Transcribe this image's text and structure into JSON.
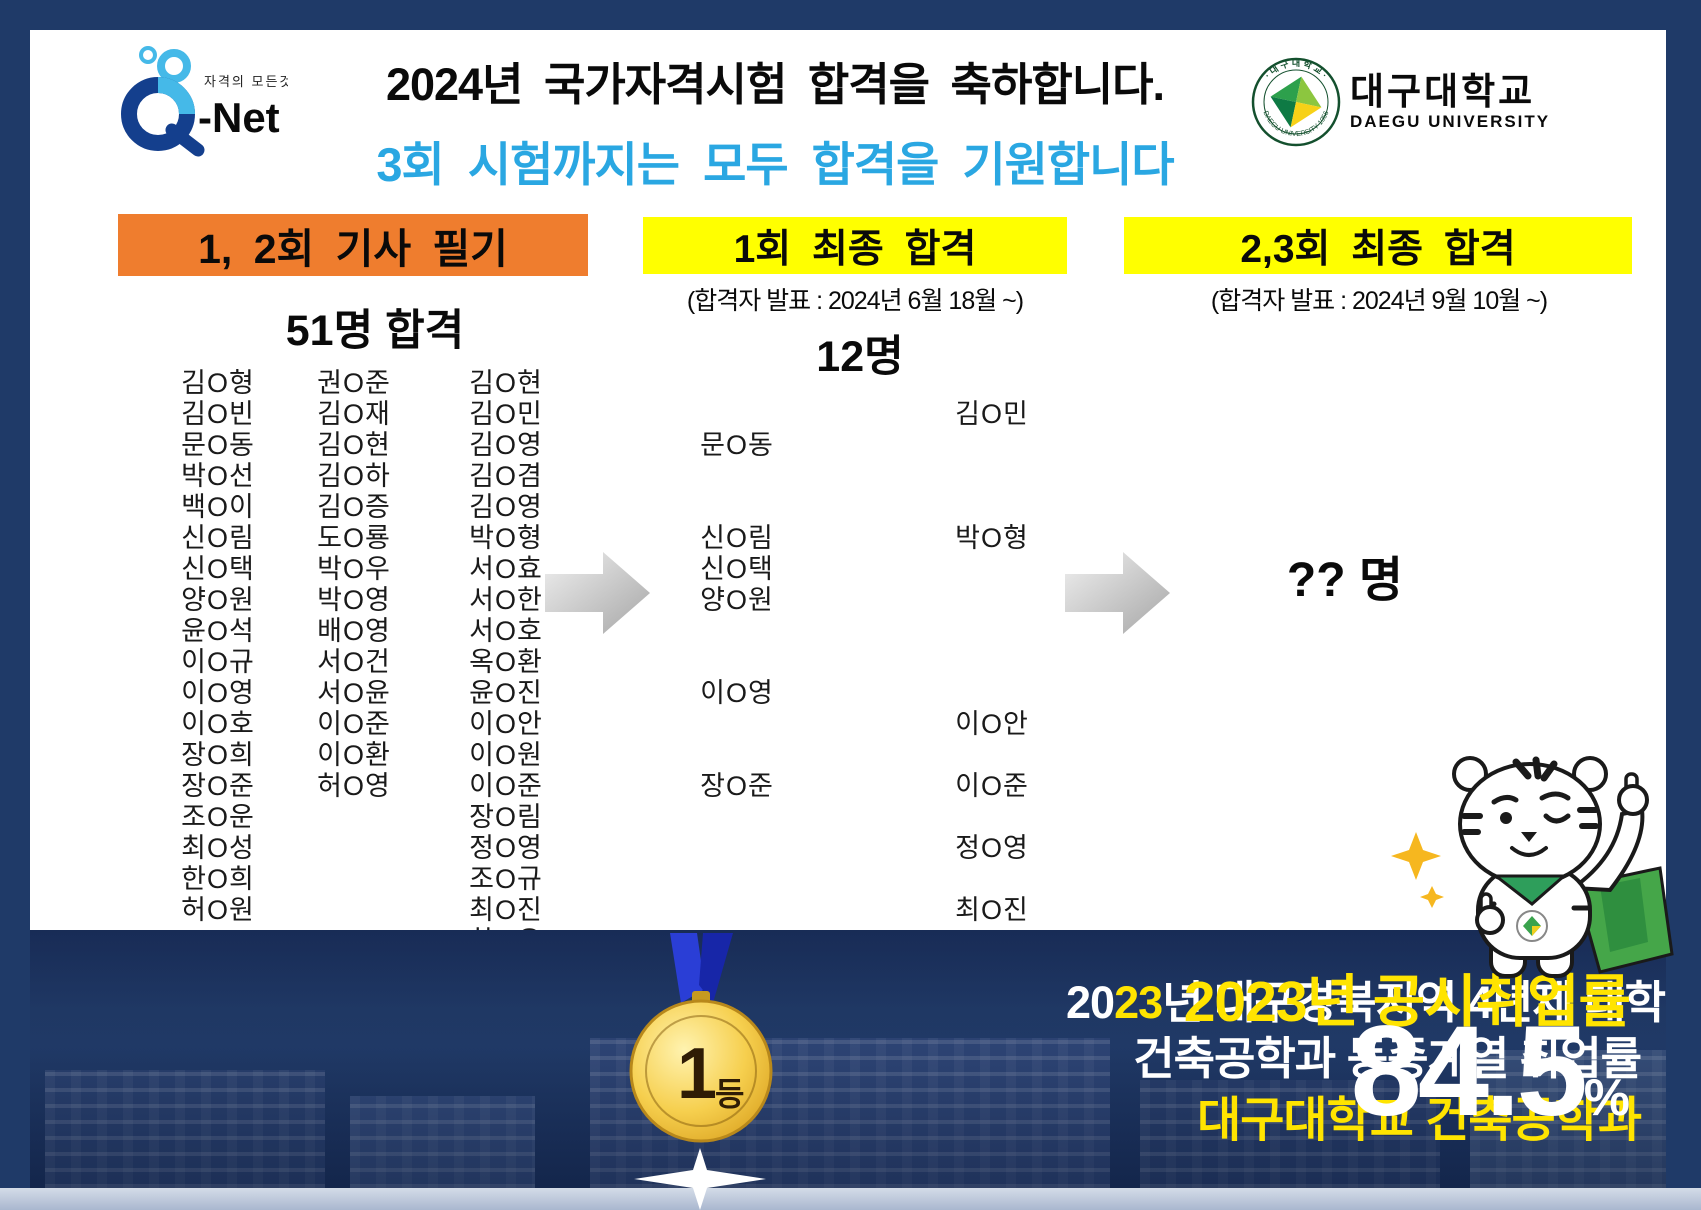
{
  "header": {
    "qnet": {
      "tagline": "자격의 모든것",
      "brand": "-Net"
    },
    "title": "2024년 국가자격시험 합격을 축하합니다.",
    "subtitle": "3회 시험까지는 모두 합격을 기원합니다",
    "university": {
      "name_ko": "대구대학교",
      "name_en": "DAEGU UNIVERSITY",
      "seal_top": "· 대 구 대 학 교 ·",
      "seal_bottom": "DAEGU UNIVERSITY 1956"
    }
  },
  "written": {
    "header": "1, 2회 기사 필기",
    "count_label": "51명 합격",
    "name_columns": [
      [
        "김O형",
        "김O빈",
        "문O동",
        "박O선",
        "백O이",
        "신O림",
        "신O택",
        "양O원",
        "윤O석",
        "이O규",
        "이O영",
        "이O호",
        "장O희",
        "장O준",
        "조O운",
        "최O성",
        "한O희",
        "허O원"
      ],
      [
        "권O준",
        "김O재",
        "김O현",
        "김O하",
        "김O증",
        "도O룡",
        "박O우",
        "박O영",
        "배O영",
        "서O건",
        "서O윤",
        "이O준",
        "이O환",
        "허O영"
      ],
      [
        "김O현",
        "김O민",
        "김O영",
        "김O겸",
        "김O영",
        "박O형",
        "서O효",
        "서O한",
        "서O호",
        "옥O환",
        "윤O진",
        "이O안",
        "이O원",
        "이O준",
        "장O림",
        "정O영",
        "조O규",
        "최O진",
        "한O우"
      ]
    ]
  },
  "final1": {
    "header": "1회 최종 합격",
    "announce": "(합격자 발표 : 2024년 6월 18월 ~)",
    "count_label": "12명",
    "left_names": [
      {
        "label": "문O동",
        "row": 2
      },
      {
        "label": "신O림",
        "row": 5
      },
      {
        "label": "신O택",
        "row": 6
      },
      {
        "label": "양O원",
        "row": 7
      },
      {
        "label": "이O영",
        "row": 10
      },
      {
        "label": "장O준",
        "row": 13
      }
    ],
    "right_names": [
      {
        "label": "김O민",
        "row": 1
      },
      {
        "label": "박O형",
        "row": 5
      },
      {
        "label": "이O안",
        "row": 11
      },
      {
        "label": "이O준",
        "row": 13
      },
      {
        "label": "정O영",
        "row": 15
      },
      {
        "label": "최O진",
        "row": 17
      }
    ]
  },
  "final23": {
    "header": "2,3회 최종 합격",
    "announce": "(합격자 발표 : 2024년 9월 10월 ~)",
    "count_label": "?? 명"
  },
  "banner": {
    "left": {
      "line1_prefix": "20",
      "line1_highlight": "23",
      "line1_rest": "년 대구경북지역 4년제 대학",
      "line2": "건축공학과 동종계열 취업률",
      "line3": "대구대학교 건축공학과"
    },
    "medal": {
      "rank": "1",
      "rank_suffix": "등"
    },
    "right": {
      "title": "2023년 공시취업률",
      "value": "84.5",
      "unit": "%"
    }
  },
  "colors": {
    "accent_blue": "#2aa7e2",
    "orange": "#ef7d2e",
    "yellow": "#ffff00",
    "banner_yellow": "#ffe400",
    "navy": "#1f3a68",
    "medal_gold": "#f3c431"
  }
}
